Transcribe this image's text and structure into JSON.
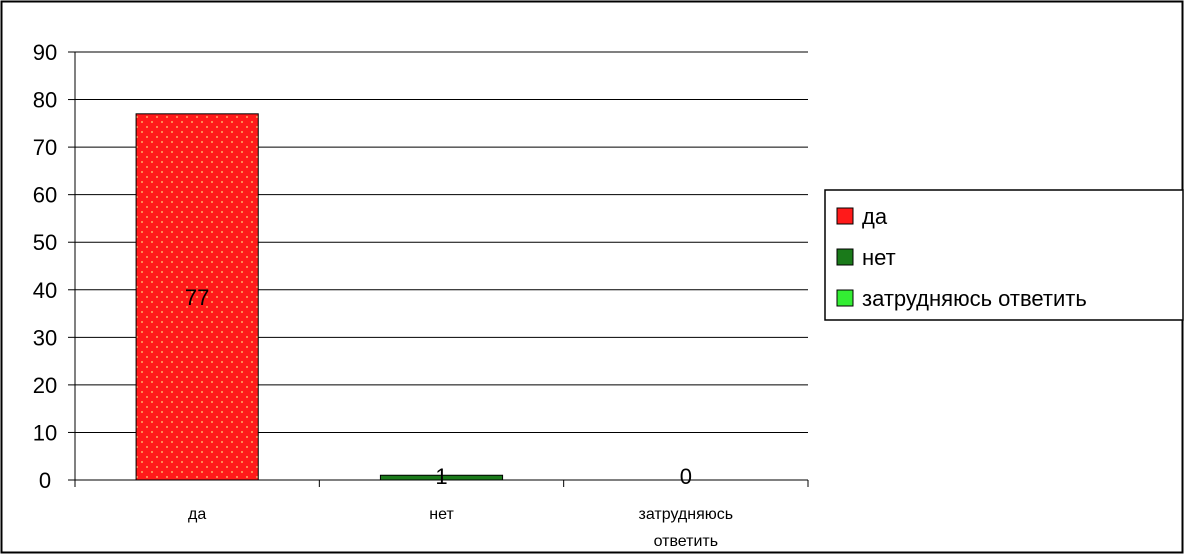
{
  "chart_data": {
    "type": "bar",
    "title": "",
    "xlabel": "",
    "ylabel": "",
    "ylim": [
      0,
      90
    ],
    "yticks": [
      0,
      10,
      20,
      30,
      40,
      50,
      60,
      70,
      80,
      90
    ],
    "grid": true,
    "legend_position": "right",
    "categories": [
      "да",
      "нет",
      "затрудняюсь ответить"
    ],
    "category_label_lines": [
      [
        "да"
      ],
      [
        "нет"
      ],
      [
        "затрудняюсь",
        "ответить"
      ]
    ],
    "values": [
      77,
      1,
      0
    ],
    "data_labels": [
      "77",
      "1",
      "0"
    ],
    "colors": [
      "#ff1a1a",
      "#1a7a1a",
      "#33ee33"
    ],
    "legend": [
      "да",
      "нет",
      "затрудняюсь ответить"
    ]
  }
}
